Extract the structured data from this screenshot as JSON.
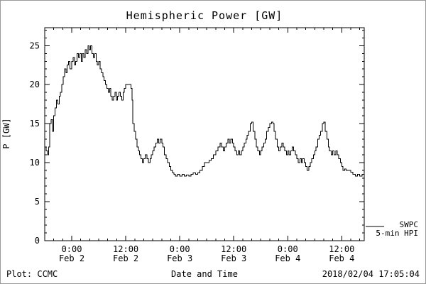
{
  "footer": {
    "left": "Plot: CCMC",
    "right": "2018/02/04 17:05:04"
  },
  "legend": {
    "line1": "SWPC",
    "line2": "5-min HPI"
  },
  "chart_data": {
    "type": "line",
    "style": "step-after",
    "title": "Hemispheric Power [GW]",
    "xlabel": "Date and Time",
    "ylabel": "P [GW]",
    "line_color": "#000000",
    "background": "#ffffff",
    "grid": false,
    "legend_position": "right-outside-bottom",
    "x_unit": "hours since 2018-02-02 00:00",
    "xlim": [
      -6,
      65
    ],
    "ylim": [
      0,
      27.3
    ],
    "y_ticks": [
      0,
      5,
      10,
      15,
      20,
      25
    ],
    "x_ticks": [
      {
        "hour": 0,
        "time": "0:00",
        "date": "Feb 2"
      },
      {
        "hour": 12,
        "time": "12:00",
        "date": "Feb 2"
      },
      {
        "hour": 24,
        "time": "0:00",
        "date": "Feb 3"
      },
      {
        "hour": 36,
        "time": "12:00",
        "date": "Feb 3"
      },
      {
        "hour": 48,
        "time": "0:00",
        "date": "Feb 4"
      },
      {
        "hour": 60,
        "time": "12:00",
        "date": "Feb 4"
      }
    ],
    "series": [
      {
        "name": "SWPC 5-min HPI",
        "points": [
          [
            -6,
            12
          ],
          [
            -5.7,
            11.5
          ],
          [
            -5.4,
            11
          ],
          [
            -5.1,
            12
          ],
          [
            -4.9,
            15
          ],
          [
            -4.6,
            15.5
          ],
          [
            -4.3,
            14
          ],
          [
            -4,
            16
          ],
          [
            -3.7,
            17
          ],
          [
            -3.4,
            18
          ],
          [
            -3.1,
            17.5
          ],
          [
            -2.8,
            18.5
          ],
          [
            -2.5,
            19
          ],
          [
            -2.2,
            20
          ],
          [
            -1.9,
            21
          ],
          [
            -1.6,
            22
          ],
          [
            -1.3,
            21.5
          ],
          [
            -1,
            22.5
          ],
          [
            -0.7,
            23
          ],
          [
            -0.4,
            22
          ],
          [
            0,
            23
          ],
          [
            0.3,
            23.5
          ],
          [
            0.6,
            22.5
          ],
          [
            0.9,
            23
          ],
          [
            1.2,
            24
          ],
          [
            1.5,
            23.5
          ],
          [
            1.8,
            24
          ],
          [
            2.1,
            23
          ],
          [
            2.4,
            24
          ],
          [
            2.7,
            23.5
          ],
          [
            3,
            24.5
          ],
          [
            3.3,
            24
          ],
          [
            3.6,
            25
          ],
          [
            3.9,
            24.5
          ],
          [
            4.2,
            25
          ],
          [
            4.5,
            24
          ],
          [
            4.8,
            23.5
          ],
          [
            5.1,
            24
          ],
          [
            5.4,
            23
          ],
          [
            5.7,
            22.5
          ],
          [
            6,
            23
          ],
          [
            6.3,
            22
          ],
          [
            6.6,
            21.5
          ],
          [
            6.9,
            21
          ],
          [
            7.2,
            20.5
          ],
          [
            7.5,
            20
          ],
          [
            7.8,
            19.5
          ],
          [
            8.1,
            19
          ],
          [
            8.4,
            19.5
          ],
          [
            8.7,
            18.5
          ],
          [
            9,
            18
          ],
          [
            9.3,
            18.5
          ],
          [
            9.6,
            19
          ],
          [
            9.9,
            18
          ],
          [
            10.2,
            18.5
          ],
          [
            10.5,
            19
          ],
          [
            10.8,
            18.5
          ],
          [
            11.1,
            18
          ],
          [
            11.4,
            19
          ],
          [
            11.7,
            19.5
          ],
          [
            12,
            20
          ],
          [
            12.6,
            20
          ],
          [
            13.2,
            19.5
          ],
          [
            13.4,
            18
          ],
          [
            13.6,
            15
          ],
          [
            13.9,
            14
          ],
          [
            14.2,
            13
          ],
          [
            14.5,
            12
          ],
          [
            14.8,
            11.5
          ],
          [
            15.1,
            11
          ],
          [
            15.4,
            10.5
          ],
          [
            15.7,
            10
          ],
          [
            16,
            10.5
          ],
          [
            16.3,
            11
          ],
          [
            16.7,
            10.5
          ],
          [
            17,
            10
          ],
          [
            17.4,
            10.5
          ],
          [
            17.7,
            11
          ],
          [
            18,
            11.5
          ],
          [
            18.3,
            12
          ],
          [
            18.7,
            12.5
          ],
          [
            19,
            13
          ],
          [
            19.3,
            12.5
          ],
          [
            19.6,
            13
          ],
          [
            20,
            12.5
          ],
          [
            20.3,
            12
          ],
          [
            20.6,
            11
          ],
          [
            21,
            10.5
          ],
          [
            21.3,
            10
          ],
          [
            21.7,
            9.5
          ],
          [
            22,
            9
          ],
          [
            22.4,
            8.7
          ],
          [
            22.7,
            8.5
          ],
          [
            23,
            8.3
          ],
          [
            23.5,
            8.5
          ],
          [
            24,
            8.3
          ],
          [
            24.5,
            8.5
          ],
          [
            25,
            8.3
          ],
          [
            25.5,
            8.4
          ],
          [
            26,
            8.3
          ],
          [
            26.5,
            8.5
          ],
          [
            27,
            8.7
          ],
          [
            27.5,
            8.5
          ],
          [
            28,
            8.7
          ],
          [
            28.5,
            9
          ],
          [
            29,
            9.5
          ],
          [
            29.5,
            10
          ],
          [
            30,
            10
          ],
          [
            30.5,
            10.3
          ],
          [
            31,
            10.5
          ],
          [
            31.5,
            11
          ],
          [
            32,
            11.5
          ],
          [
            32.5,
            12
          ],
          [
            33,
            12.5
          ],
          [
            33.3,
            12
          ],
          [
            33.7,
            11.5
          ],
          [
            34,
            12
          ],
          [
            34.3,
            12.5
          ],
          [
            34.7,
            13
          ],
          [
            35,
            12.5
          ],
          [
            35.3,
            13
          ],
          [
            35.7,
            12.5
          ],
          [
            36,
            12
          ],
          [
            36.3,
            11.5
          ],
          [
            36.7,
            11
          ],
          [
            37,
            11.5
          ],
          [
            37.3,
            11
          ],
          [
            37.7,
            11.5
          ],
          [
            38,
            12
          ],
          [
            38.3,
            12.5
          ],
          [
            38.7,
            13
          ],
          [
            39,
            13.5
          ],
          [
            39.3,
            14
          ],
          [
            39.7,
            15
          ],
          [
            40,
            15.2
          ],
          [
            40.3,
            14
          ],
          [
            40.7,
            13
          ],
          [
            41,
            12
          ],
          [
            41.3,
            11.5
          ],
          [
            41.7,
            11
          ],
          [
            42,
            11.5
          ],
          [
            42.3,
            12
          ],
          [
            42.7,
            12.5
          ],
          [
            43,
            13
          ],
          [
            43.3,
            14
          ],
          [
            43.7,
            14.5
          ],
          [
            44,
            15
          ],
          [
            44.4,
            15.2
          ],
          [
            44.7,
            15
          ],
          [
            45,
            14
          ],
          [
            45.3,
            13
          ],
          [
            45.7,
            12
          ],
          [
            46,
            11.5
          ],
          [
            46.3,
            12
          ],
          [
            46.7,
            12.5
          ],
          [
            47,
            12
          ],
          [
            47.3,
            11.5
          ],
          [
            47.7,
            11
          ],
          [
            48,
            11.5
          ],
          [
            48.3,
            11
          ],
          [
            48.7,
            11.5
          ],
          [
            49,
            12
          ],
          [
            49.3,
            11.5
          ],
          [
            49.7,
            11
          ],
          [
            50,
            10.5
          ],
          [
            50.3,
            10
          ],
          [
            50.7,
            10.5
          ],
          [
            51,
            10
          ],
          [
            51.3,
            10.5
          ],
          [
            51.7,
            10
          ],
          [
            52,
            9.5
          ],
          [
            52.3,
            9
          ],
          [
            52.7,
            9.5
          ],
          [
            53,
            10
          ],
          [
            53.3,
            10.5
          ],
          [
            53.7,
            11
          ],
          [
            54,
            11.5
          ],
          [
            54.3,
            12
          ],
          [
            54.7,
            13
          ],
          [
            55,
            13.5
          ],
          [
            55.3,
            14
          ],
          [
            55.7,
            15
          ],
          [
            56,
            15.2
          ],
          [
            56.3,
            14
          ],
          [
            56.7,
            13
          ],
          [
            57,
            12
          ],
          [
            57.3,
            11.5
          ],
          [
            57.7,
            11
          ],
          [
            58,
            11.5
          ],
          [
            58.3,
            11
          ],
          [
            58.7,
            11.5
          ],
          [
            59,
            11
          ],
          [
            59.3,
            10.5
          ],
          [
            59.7,
            10
          ],
          [
            60,
            9.5
          ],
          [
            60.3,
            9
          ],
          [
            60.7,
            9.2
          ],
          [
            61,
            9
          ],
          [
            61.5,
            9
          ],
          [
            62,
            8.8
          ],
          [
            62.5,
            8.5
          ],
          [
            63,
            8.3
          ],
          [
            63.5,
            8.5
          ],
          [
            64,
            8.3
          ],
          [
            64.5,
            8.5
          ],
          [
            65,
            8.3
          ]
        ]
      }
    ]
  }
}
